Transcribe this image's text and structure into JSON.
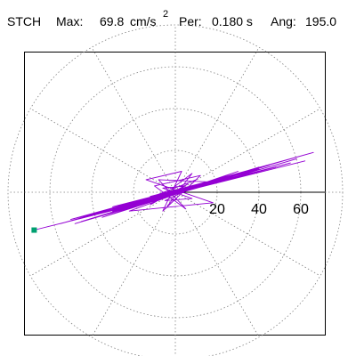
{
  "header": {
    "station": "STCH",
    "max_label": "Max:",
    "max_value": "69.8",
    "max_unit": "cm/s",
    "max_unit_exp": "2",
    "period_label": "Per:",
    "period_value": "0.180 s",
    "angle_label": "Ang:",
    "angle_value": "195.0"
  },
  "colors": {
    "orbit": "#9400d3",
    "grid": "#808080",
    "axis": "#000000",
    "marker": "#00a070"
  },
  "chart_data": {
    "type": "line",
    "subtype": "polar-particle-motion",
    "title": "",
    "xlabel": "",
    "ylabel": "",
    "r_ticks": [
      20,
      40,
      60
    ],
    "r_tick_labels": [
      "20",
      "40",
      "60"
    ],
    "r_max": 80,
    "spoke_step_deg": 30,
    "grid": true,
    "max_value": 69.8,
    "angle_deg": 195.0,
    "marker": {
      "x": -67.5,
      "y": -18.1
    },
    "series": [
      {
        "points": [
          [
            0,
            0
          ],
          [
            4,
            3
          ],
          [
            -6,
            2
          ],
          [
            8,
            -3
          ],
          [
            -5,
            -4
          ],
          [
            12,
            4
          ],
          [
            -14,
            -3
          ],
          [
            20,
            6
          ],
          [
            -18,
            -6
          ],
          [
            28,
            7
          ],
          [
            -30,
            -7
          ],
          [
            40,
            11
          ],
          [
            -42,
            -11
          ],
          [
            55,
            14
          ],
          [
            -55,
            -15
          ],
          [
            66,
            19
          ],
          [
            -50,
            -13
          ],
          [
            62,
            15
          ],
          [
            -38,
            -10
          ],
          [
            48,
            12
          ],
          [
            -28,
            -8
          ],
          [
            35,
            9
          ],
          [
            -20,
            -5
          ],
          [
            25,
            7
          ],
          [
            -12,
            -2
          ],
          [
            15,
            5
          ],
          [
            -8,
            6
          ],
          [
            5,
            -8
          ],
          [
            -10,
            3
          ],
          [
            12,
            8
          ],
          [
            -6,
            -9
          ],
          [
            3,
            10
          ],
          [
            -14,
            6
          ],
          [
            18,
            -5
          ],
          [
            -22,
            -9
          ],
          [
            30,
            10
          ],
          [
            -35,
            -12
          ],
          [
            45,
            13
          ],
          [
            -48,
            -15
          ],
          [
            58,
            16
          ],
          [
            -45,
            -14
          ],
          [
            40,
            12
          ],
          [
            -30,
            -9
          ],
          [
            26,
            8
          ],
          [
            -16,
            -4
          ],
          [
            10,
            6
          ],
          [
            -4,
            -7
          ],
          [
            8,
            9
          ],
          [
            -12,
            -6
          ],
          [
            6,
            4
          ],
          [
            -3,
            -2
          ],
          [
            -67.5,
            -18.1
          ]
        ]
      }
    ]
  }
}
